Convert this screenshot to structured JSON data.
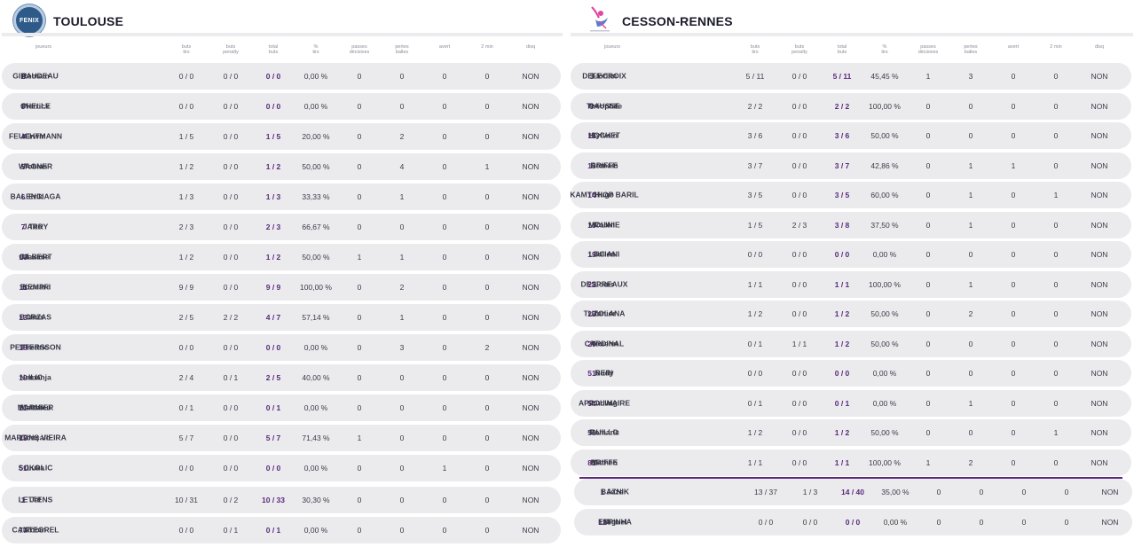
{
  "columns": [
    "joueurs",
    "buts\ntirs",
    "buts\npenalty",
    "total\nbuts",
    "%\ntirs",
    "passes\ndécisives",
    "pertes\nballes",
    "avert",
    "2 min",
    "disq"
  ],
  "left_team": {
    "name": "TOULOUSE",
    "logo_text": "FENIX",
    "players": [
      {
        "num": "2",
        "last": "GIRAUDEAU",
        "first": "Romain",
        "buts_tirs": "0 / 0",
        "penalty": "0 / 0",
        "total": "0 / 0",
        "pct": "0,00 %",
        "passes": "0",
        "pertes": "0",
        "avert": "0",
        "min2": "0",
        "disq": "NON"
      },
      {
        "num": "3",
        "last": "CHELLE",
        "first": "Pierrick",
        "buts_tirs": "0 / 0",
        "penalty": "0 / 0",
        "total": "0 / 0",
        "pct": "0,00 %",
        "passes": "0",
        "pertes": "0",
        "avert": "0",
        "min2": "0",
        "disq": "NON"
      },
      {
        "num": "4",
        "last": "FEUCHTMANN",
        "first": "Erwin",
        "buts_tirs": "1 / 5",
        "penalty": "0 / 0",
        "total": "1 / 5",
        "pct": "20,00 %",
        "passes": "0",
        "pertes": "2",
        "avert": "0",
        "min2": "0",
        "disq": "NON"
      },
      {
        "num": "5",
        "last": "WAGNER",
        "first": "Tobias",
        "buts_tirs": "1 / 2",
        "penalty": "0 / 0",
        "total": "1 / 2",
        "pct": "50,00 %",
        "passes": "0",
        "pertes": "4",
        "avert": "0",
        "min2": "1",
        "disq": "NON"
      },
      {
        "num": "6",
        "last": "BALENCIAGA",
        "first": "Erik",
        "buts_tirs": "1 / 3",
        "penalty": "0 / 0",
        "total": "1 / 3",
        "pct": "33,33 %",
        "passes": "0",
        "pertes": "1",
        "avert": "0",
        "min2": "0",
        "disq": "NON"
      },
      {
        "num": "7",
        "last": "JARRY",
        "first": "Téo",
        "buts_tirs": "2 / 3",
        "penalty": "0 / 0",
        "total": "2 / 3",
        "pct": "66,67 %",
        "passes": "0",
        "pertes": "0",
        "avert": "0",
        "min2": "0",
        "disq": "NON"
      },
      {
        "num": "10",
        "last": "GILBERT",
        "first": "Maxime",
        "buts_tirs": "1 / 2",
        "penalty": "0 / 0",
        "total": "1 / 2",
        "pct": "50,00 %",
        "passes": "1",
        "pertes": "1",
        "avert": "0",
        "min2": "0",
        "disq": "NON"
      },
      {
        "num": "11",
        "last": "KEMPF",
        "first": "Edouard",
        "buts_tirs": "9 / 9",
        "penalty": "0 / 0",
        "total": "9 / 9",
        "pct": "100,00 %",
        "passes": "0",
        "pertes": "2",
        "avert": "0",
        "min2": "0",
        "disq": "NON"
      },
      {
        "num": "13",
        "last": "BORZAS",
        "first": "Uros",
        "buts_tirs": "2 / 5",
        "penalty": "2 / 2",
        "total": "4 / 7",
        "pct": "57,14 %",
        "passes": "0",
        "pertes": "1",
        "avert": "0",
        "min2": "0",
        "disq": "NON"
      },
      {
        "num": "18",
        "last": "PETTERSSON",
        "first": "Fredric",
        "buts_tirs": "0 / 0",
        "penalty": "0 / 0",
        "total": "0 / 0",
        "pct": "0,00 %",
        "passes": "0",
        "pertes": "3",
        "avert": "0",
        "min2": "2",
        "disq": "NON"
      },
      {
        "num": "19",
        "last": "ILIC",
        "first": "Nemanja",
        "buts_tirs": "2 / 4",
        "penalty": "0 / 1",
        "total": "2 / 5",
        "pct": "40,00 %",
        "passes": "0",
        "pertes": "0",
        "avert": "0",
        "min2": "0",
        "disq": "NON"
      },
      {
        "num": "21",
        "last": "MARMIER",
        "first": "Matthieu",
        "buts_tirs": "0 / 1",
        "penalty": "0 / 0",
        "total": "0 / 1",
        "pct": "0,00 %",
        "passes": "0",
        "pertes": "0",
        "avert": "0",
        "min2": "0",
        "disq": "NON"
      },
      {
        "num": "23",
        "last": "MARTINS VIEIRA",
        "first": "Gonçalo",
        "buts_tirs": "5 / 7",
        "penalty": "0 / 0",
        "total": "5 / 7",
        "pct": "71,43 %",
        "passes": "1",
        "pertes": "0",
        "avert": "0",
        "min2": "0",
        "disq": "NON"
      },
      {
        "num": "51",
        "last": "SOKOLIC",
        "first": "Luka",
        "buts_tirs": "0 / 0",
        "penalty": "0 / 0",
        "total": "0 / 0",
        "pct": "0,00 %",
        "passes": "0",
        "pertes": "0",
        "avert": "1",
        "min2": "0",
        "disq": "NON"
      }
    ],
    "goalkeepers": [
      {
        "num": "1",
        "last": "LETTENS",
        "first": "Jef",
        "buts_tirs": "10 / 31",
        "penalty": "0 / 2",
        "total": "10 / 33",
        "pct": "30,30 %",
        "passes": "0",
        "pertes": "0",
        "avert": "0",
        "min2": "0",
        "disq": "NON"
      },
      {
        "num": "77",
        "last": "CANTEGREL",
        "first": "Robin",
        "buts_tirs": "0 / 0",
        "penalty": "0 / 1",
        "total": "0 / 1",
        "pct": "0,00 %",
        "passes": "0",
        "pertes": "0",
        "avert": "0",
        "min2": "0",
        "disq": "NON"
      }
    ]
  },
  "right_team": {
    "name": "CESSON-RENNES",
    "players": [
      {
        "num": "3",
        "last": "DELECROIX",
        "first": "Florian",
        "buts_tirs": "5 / 11",
        "penalty": "0 / 0",
        "total": "5 / 11",
        "pct": "45,45 %",
        "passes": "1",
        "pertes": "3",
        "avert": "0",
        "min2": "0",
        "disq": "NON"
      },
      {
        "num": "9",
        "last": "CAUSSE",
        "first": "Théophile",
        "buts_tirs": "2 / 2",
        "penalty": "0 / 0",
        "total": "2 / 2",
        "pct": "100,00 %",
        "passes": "0",
        "pertes": "0",
        "avert": "0",
        "min2": "0",
        "disq": "NON"
      },
      {
        "num": "11",
        "last": "HOCHET",
        "first": "Sylvain",
        "buts_tirs": "3 / 6",
        "penalty": "0 / 0",
        "total": "3 / 6",
        "pct": "50,00 %",
        "passes": "0",
        "pertes": "0",
        "avert": "0",
        "min2": "0",
        "disq": "NON"
      },
      {
        "num": "13",
        "last": "BRIFFE",
        "first": "Romain",
        "buts_tirs": "3 / 7",
        "penalty": "0 / 0",
        "total": "3 / 7",
        "pct": "42,86 %",
        "passes": "0",
        "pertes": "1",
        "avert": "1",
        "min2": "0",
        "disq": "NON"
      },
      {
        "num": "14",
        "last": "KAMTCHOP BARIL",
        "first": "Hugo",
        "buts_tirs": "3 / 5",
        "penalty": "0 / 0",
        "total": "3 / 5",
        "pct": "60,00 %",
        "passes": "0",
        "pertes": "1",
        "avert": "0",
        "min2": "1",
        "disq": "NON"
      },
      {
        "num": "15",
        "last": "MOLINIE",
        "first": "Robin",
        "buts_tirs": "1 / 5",
        "penalty": "2 / 3",
        "total": "3 / 8",
        "pct": "37,50 %",
        "passes": "0",
        "pertes": "1",
        "avert": "0",
        "min2": "0",
        "disq": "NON"
      },
      {
        "num": "19",
        "last": "LUCIANI",
        "first": "Julien",
        "buts_tirs": "0 / 0",
        "penalty": "0 / 0",
        "total": "0 / 0",
        "pct": "0,00 %",
        "passes": "0",
        "pertes": "0",
        "avert": "0",
        "min2": "0",
        "disq": "NON"
      },
      {
        "num": "22",
        "last": "DESPREAUX",
        "first": "Louis",
        "buts_tirs": "1 / 1",
        "penalty": "0 / 0",
        "total": "1 / 1",
        "pct": "100,00 %",
        "passes": "0",
        "pertes": "1",
        "avert": "0",
        "min2": "0",
        "disq": "NON"
      },
      {
        "num": "23",
        "last": "TUZOLANA",
        "first": "Junior",
        "buts_tirs": "1 / 2",
        "penalty": "0 / 0",
        "total": "1 / 2",
        "pct": "50,00 %",
        "passes": "0",
        "pertes": "2",
        "avert": "0",
        "min2": "0",
        "disq": "NON"
      },
      {
        "num": "29",
        "last": "CARDINAL",
        "first": "Youenn",
        "buts_tirs": "0 / 1",
        "penalty": "1 / 1",
        "total": "1 / 2",
        "pct": "50,00 %",
        "passes": "0",
        "pertes": "0",
        "avert": "0",
        "min2": "0",
        "disq": "NON"
      },
      {
        "num": "51",
        "last": "SERI",
        "first": "Rudy",
        "buts_tirs": "0 / 0",
        "penalty": "0 / 0",
        "total": "0 / 0",
        "pct": "0,00 %",
        "passes": "0",
        "pertes": "0",
        "avert": "0",
        "min2": "0",
        "disq": "NON"
      },
      {
        "num": "54",
        "last": "APPOLINAIRE",
        "first": "Ludwig",
        "buts_tirs": "0 / 1",
        "penalty": "0 / 0",
        "total": "0 / 1",
        "pct": "0,00 %",
        "passes": "0",
        "pertes": "1",
        "avert": "0",
        "min2": "0",
        "disq": "NON"
      },
      {
        "num": "56",
        "last": "GUILLO",
        "first": "Romaric",
        "buts_tirs": "1 / 2",
        "penalty": "0 / 0",
        "total": "1 / 2",
        "pct": "50,00 %",
        "passes": "0",
        "pertes": "0",
        "avert": "0",
        "min2": "1",
        "disq": "NON"
      },
      {
        "num": "81",
        "last": "BRIFFE",
        "first": "Mathéo",
        "buts_tirs": "1 / 1",
        "penalty": "0 / 0",
        "total": "1 / 1",
        "pct": "100,00 %",
        "passes": "1",
        "pertes": "2",
        "avert": "0",
        "min2": "0",
        "disq": "NON"
      }
    ],
    "goalkeepers": [
      {
        "num": "1",
        "last": "BAZNIK",
        "first": "Joze",
        "buts_tirs": "13 / 37",
        "penalty": "1 / 3",
        "total": "14 / 40",
        "pct": "35,00 %",
        "passes": "0",
        "pertes": "0",
        "avert": "0",
        "min2": "0",
        "disq": "NON"
      },
      {
        "num": "12",
        "last": "ESPINHA",
        "first": "Miguel",
        "buts_tirs": "0 / 0",
        "penalty": "0 / 0",
        "total": "0 / 0",
        "pct": "0,00 %",
        "passes": "0",
        "pertes": "0",
        "avert": "0",
        "min2": "0",
        "disq": "NON"
      }
    ]
  },
  "colors": {
    "accent": "#5a2a7a",
    "row_bg": "#ebebee",
    "cesson_pink": "#e0479e",
    "cesson_blue": "#5a7fd0"
  }
}
